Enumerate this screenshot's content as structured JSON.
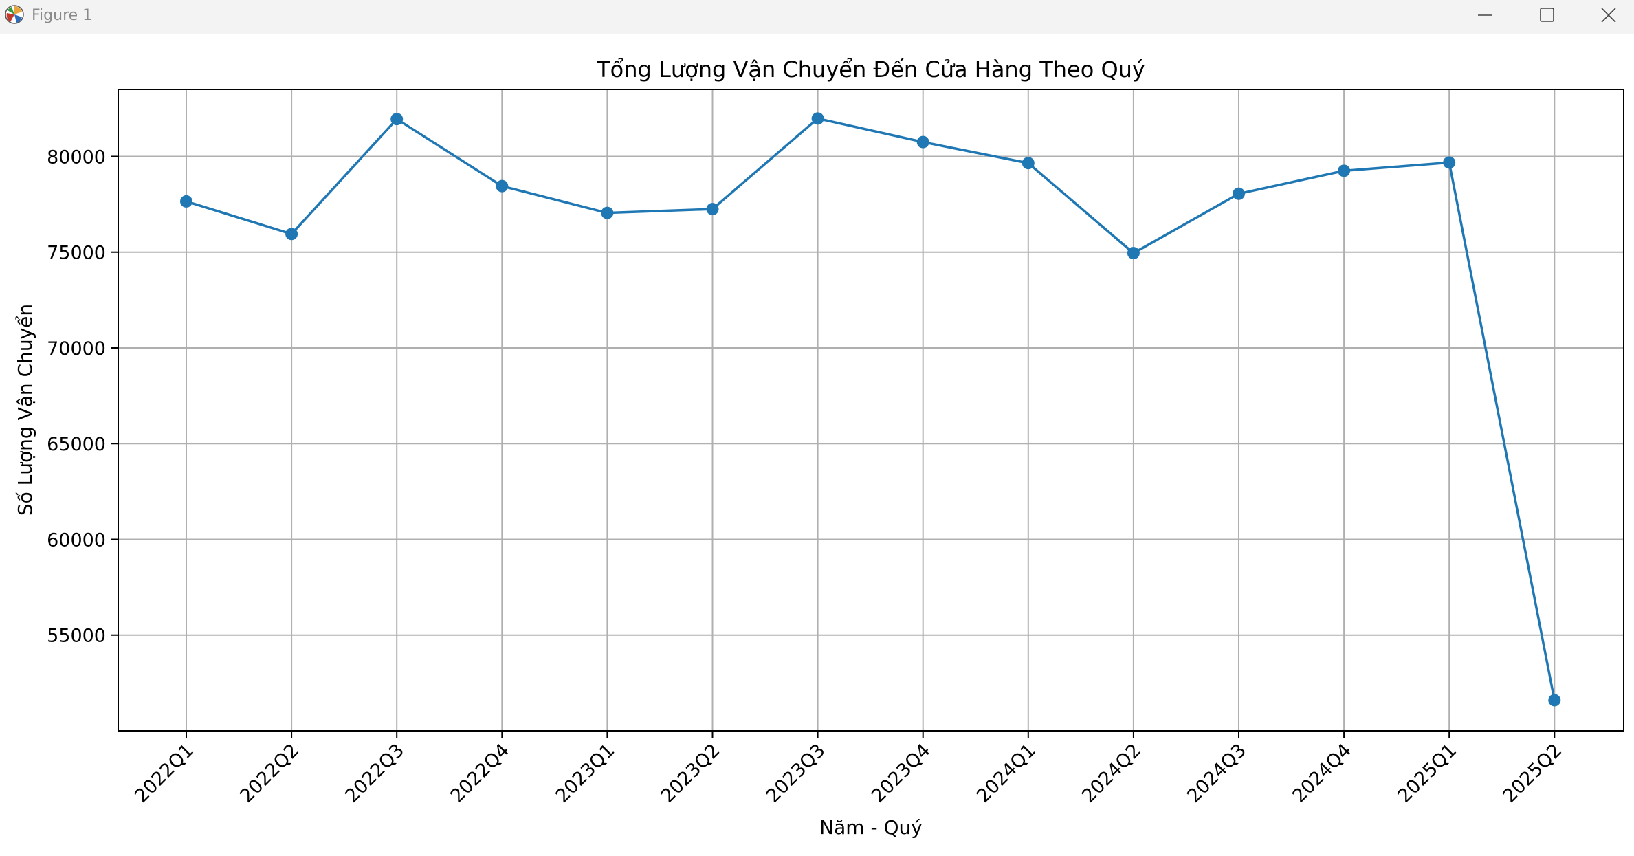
{
  "window": {
    "title": "Figure 1",
    "icons": {
      "app": "matplotlib-app-icon",
      "minimize": "minimize-icon",
      "maximize": "maximize-icon",
      "close": "close-icon"
    }
  },
  "chart_data": {
    "type": "line",
    "title": "Tổng Lượng Vận Chuyển Đến Cửa Hàng Theo Quý",
    "xlabel": "Năm - Quý",
    "ylabel": "Số Lượng Vận Chuyển",
    "categories": [
      "2022Q1",
      "2022Q2",
      "2022Q3",
      "2022Q4",
      "2023Q1",
      "2023Q2",
      "2023Q3",
      "2023Q4",
      "2024Q1",
      "2024Q2",
      "2024Q3",
      "2024Q4",
      "2025Q1",
      "2025Q2"
    ],
    "series": [
      {
        "values": [
          77650,
          75950,
          81950,
          78450,
          77050,
          77250,
          81980,
          80750,
          79650,
          74950,
          78050,
          79250,
          79680,
          51600
        ]
      }
    ],
    "yticks": [
      55000,
      60000,
      65000,
      70000,
      75000,
      80000
    ],
    "ylim": [
      50000,
      83500
    ],
    "grid": true,
    "marker": "circle",
    "color": "#1f77b4"
  }
}
